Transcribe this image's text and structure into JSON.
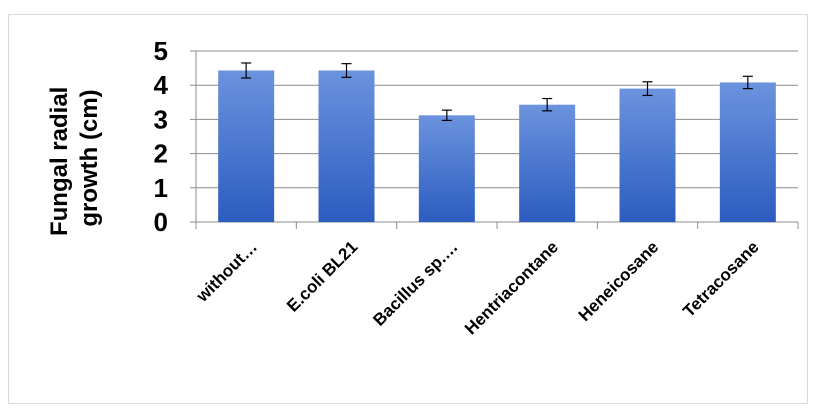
{
  "chart_data": {
    "type": "bar",
    "ylabel": "Fungal radial growth  (cm)",
    "ylabel_lines": [
      "Fungal radial",
      "growth  (cm)"
    ],
    "categories": [
      "without…",
      "E.coli BL21",
      "Bacillus sp.…",
      "Hentriacontane",
      "Heneicosane",
      "Tetracosane"
    ],
    "values": [
      4.43,
      4.43,
      3.12,
      3.43,
      3.9,
      4.08
    ],
    "errors": [
      0.22,
      0.2,
      0.15,
      0.18,
      0.2,
      0.18
    ],
    "ylim": [
      0,
      5
    ],
    "yticks": [
      "0",
      "1",
      "2",
      "3",
      "4",
      "5"
    ],
    "grid": true,
    "legend": "none",
    "bar_color_top": "#6b93de",
    "bar_color_bottom": "#2c5cc0"
  }
}
